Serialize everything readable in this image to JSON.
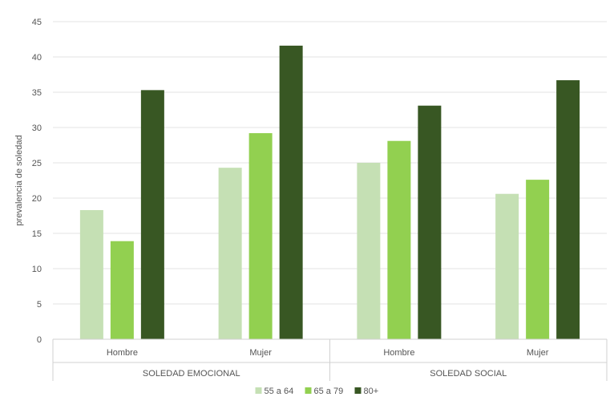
{
  "chart_data": {
    "type": "bar",
    "title": "",
    "ylabel": "prevalencia de soledad",
    "ylim": [
      0,
      45
    ],
    "yticks": [
      0,
      5,
      10,
      15,
      20,
      25,
      30,
      35,
      40,
      45
    ],
    "grid": true,
    "legend_position": "bottom",
    "groups": [
      {
        "label": "SOLEDAD EMOCIONAL",
        "categories": [
          "Hombre",
          "Mujer"
        ]
      },
      {
        "label": "SOLEDAD SOCIAL",
        "categories": [
          "Hombre",
          "Mujer"
        ]
      }
    ],
    "categories": [
      "Hombre",
      "Mujer",
      "Hombre",
      "Mujer"
    ],
    "series": [
      {
        "name": "55 a 64",
        "color": "#c5e0b4",
        "values": [
          18.3,
          24.3,
          25.0,
          20.6
        ]
      },
      {
        "name": "65 a 79",
        "color": "#92d050",
        "values": [
          13.9,
          29.2,
          28.1,
          22.6
        ]
      },
      {
        "name": "80+",
        "color": "#385723",
        "values": [
          35.3,
          41.6,
          33.1,
          36.7
        ]
      }
    ]
  }
}
